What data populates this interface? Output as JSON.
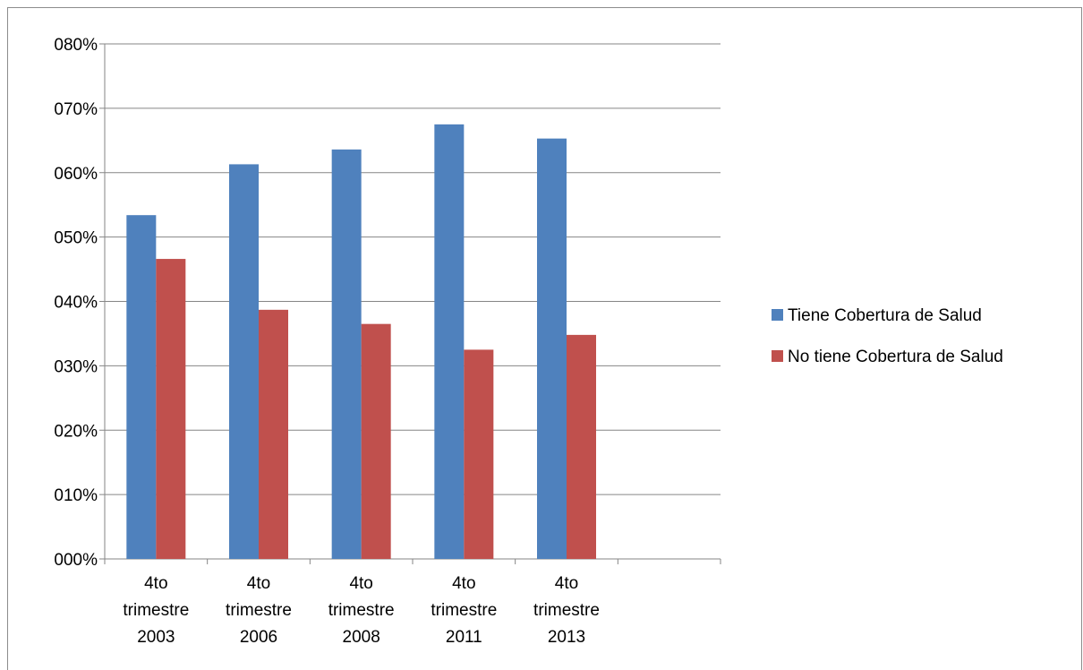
{
  "chart_data": {
    "type": "bar",
    "title": "",
    "xlabel": "",
    "ylabel": "",
    "categories": [
      [
        "4to",
        "trimestre",
        "2003"
      ],
      [
        "4to",
        "trimestre",
        "2006"
      ],
      [
        "4to",
        "trimestre",
        "2008"
      ],
      [
        "4to",
        "trimestre",
        "2011"
      ],
      [
        "4to",
        "trimestre",
        "2013"
      ],
      [
        ""
      ]
    ],
    "series": [
      {
        "name": "Tiene Cobertura de Salud",
        "color": "#4F81BD",
        "values": [
          53.4,
          61.3,
          63.6,
          67.5,
          65.3,
          null
        ]
      },
      {
        "name": "No tiene Cobertura de Salud",
        "color": "#C0504D",
        "values": [
          46.6,
          38.7,
          36.5,
          32.5,
          34.8,
          null
        ]
      }
    ],
    "ylim": [
      0,
      80
    ],
    "yticks": [
      0,
      10,
      20,
      30,
      40,
      50,
      60,
      70,
      80
    ],
    "ytick_labels": [
      "000%",
      "010%",
      "020%",
      "030%",
      "040%",
      "050%",
      "060%",
      "070%",
      "080%"
    ],
    "grid": true,
    "legend_position": "right"
  }
}
